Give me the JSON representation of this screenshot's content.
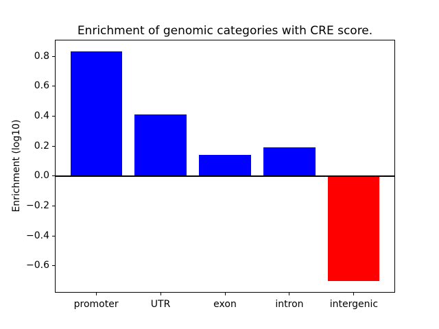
{
  "chart_data": {
    "type": "bar",
    "title": "Enrichment of genomic categories with CRE score.",
    "ylabel": "Enrichment (log10)",
    "xlabel": "",
    "categories": [
      "promoter",
      "UTR",
      "exon",
      "intron",
      "intergenic"
    ],
    "values": [
      0.83,
      0.41,
      0.14,
      0.19,
      -0.7
    ],
    "positive_color": "#0000ff",
    "negative_color": "#ff0000",
    "yticks": [
      0.8,
      0.6,
      0.4,
      0.2,
      0.0,
      -0.2,
      -0.4,
      -0.6
    ],
    "ylim": [
      -0.78,
      0.91
    ],
    "bar_width_fraction": 0.8,
    "zero_line": true,
    "zero_line_color": "#000000",
    "grid": false,
    "legend_position": "none",
    "background_color": "#ffffff"
  }
}
